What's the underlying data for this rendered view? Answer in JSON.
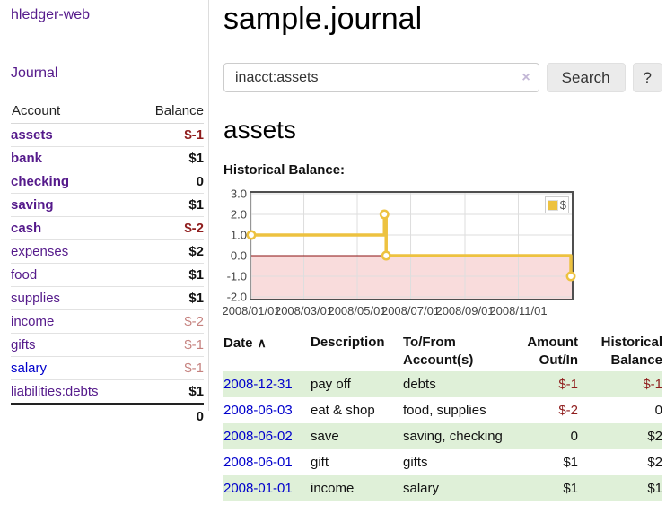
{
  "app": {
    "brand": "hledger-web",
    "nav_journal": "Journal"
  },
  "sidebar": {
    "headers": [
      "Account",
      "Balance"
    ],
    "accounts": [
      {
        "name": "assets",
        "depth": 0,
        "bold": true,
        "balance": "$-1"
      },
      {
        "name": "bank",
        "depth": 1,
        "bold": true,
        "balance": "$1"
      },
      {
        "name": "checking",
        "depth": 2,
        "bold": true,
        "balance": "0"
      },
      {
        "name": "saving",
        "depth": 2,
        "bold": true,
        "balance": "$1"
      },
      {
        "name": "cash",
        "depth": 1,
        "bold": true,
        "balance": "$-2"
      },
      {
        "name": "expenses",
        "depth": 0,
        "bold": false,
        "balance": "$2"
      },
      {
        "name": "food",
        "depth": 1,
        "bold": false,
        "balance": "$1"
      },
      {
        "name": "supplies",
        "depth": 1,
        "bold": false,
        "balance": "$1"
      },
      {
        "name": "income",
        "depth": 0,
        "bold": false,
        "balance": "$-2"
      },
      {
        "name": "gifts",
        "depth": 1,
        "bold": false,
        "balance": "$-1"
      },
      {
        "name": "salary",
        "depth": 1,
        "bold": false,
        "balance": "$-1"
      },
      {
        "name": "liabilities:debts",
        "depth": 0,
        "bold": false,
        "balance": "$1"
      }
    ],
    "total": "0"
  },
  "header": {
    "title": "sample.journal"
  },
  "search": {
    "value": "inacct:assets",
    "clear_icon": "×",
    "button_label": "Search",
    "help_label": "?"
  },
  "account_page": {
    "heading": "assets",
    "chart_label": "Historical Balance:"
  },
  "icons": {
    "sort_asc": "∧"
  },
  "chart_data": {
    "type": "line",
    "step": true,
    "series": [
      {
        "name": "$",
        "color": "#EDC240",
        "points": [
          {
            "x": "2008-01-01",
            "y": 1
          },
          {
            "x": "2008-06-01",
            "y": 2
          },
          {
            "x": "2008-06-03",
            "y": 0
          },
          {
            "x": "2008-12-31",
            "y": -1
          }
        ]
      }
    ],
    "xlim": [
      "2008-01-01",
      "2009-01-01"
    ],
    "ylim": [
      -2,
      3
    ],
    "x_ticks": [
      "2008/01/01",
      "2008/03/01",
      "2008/05/01",
      "2008/07/01",
      "2008/09/01",
      "2008/11/01"
    ],
    "y_ticks": [
      3.0,
      2.0,
      1.0,
      0.0,
      -1.0,
      -2.0
    ],
    "y_tick_labels": [
      "3.0",
      "2.0",
      "1.0",
      "0.0",
      "-1.0",
      "-2.0"
    ],
    "legend": {
      "label": "$",
      "position": "top-right"
    },
    "grid": true,
    "negative_region_color": "#f9dcdc",
    "zero_line_color": "#8b1010",
    "border_color": "#4f4f4f",
    "grid_color": "#dedede"
  },
  "register": {
    "columns": {
      "date": "Date",
      "description": "Description",
      "account_line1": "To/From",
      "account_line2": "Account(s)",
      "amount_line1": "Amount",
      "amount_line2": "Out/In",
      "balance_line1": "Historical",
      "balance_line2": "Balance"
    },
    "rows": [
      {
        "date": "2008-12-31",
        "description": "pay off",
        "account": "debts",
        "amount": "$-1",
        "balance": "$-1"
      },
      {
        "date": "2008-06-03",
        "description": "eat & shop",
        "account": "food, supplies",
        "amount": "$-2",
        "balance": "0"
      },
      {
        "date": "2008-06-02",
        "description": "save",
        "account": "saving, checking",
        "amount": "0",
        "balance": "$2"
      },
      {
        "date": "2008-06-01",
        "description": "gift",
        "account": "gifts",
        "amount": "$1",
        "balance": "$2"
      },
      {
        "date": "2008-01-01",
        "description": "income",
        "account": "salary",
        "amount": "$1",
        "balance": "$1"
      }
    ]
  },
  "colors": {
    "link_purple": "#551a8b",
    "link_blue": "#0000cc",
    "negative_strong": "#8f1d1d",
    "negative_muted": "#c5817e",
    "row_green": "#dff0d8",
    "series_yellow": "#EDC240"
  }
}
